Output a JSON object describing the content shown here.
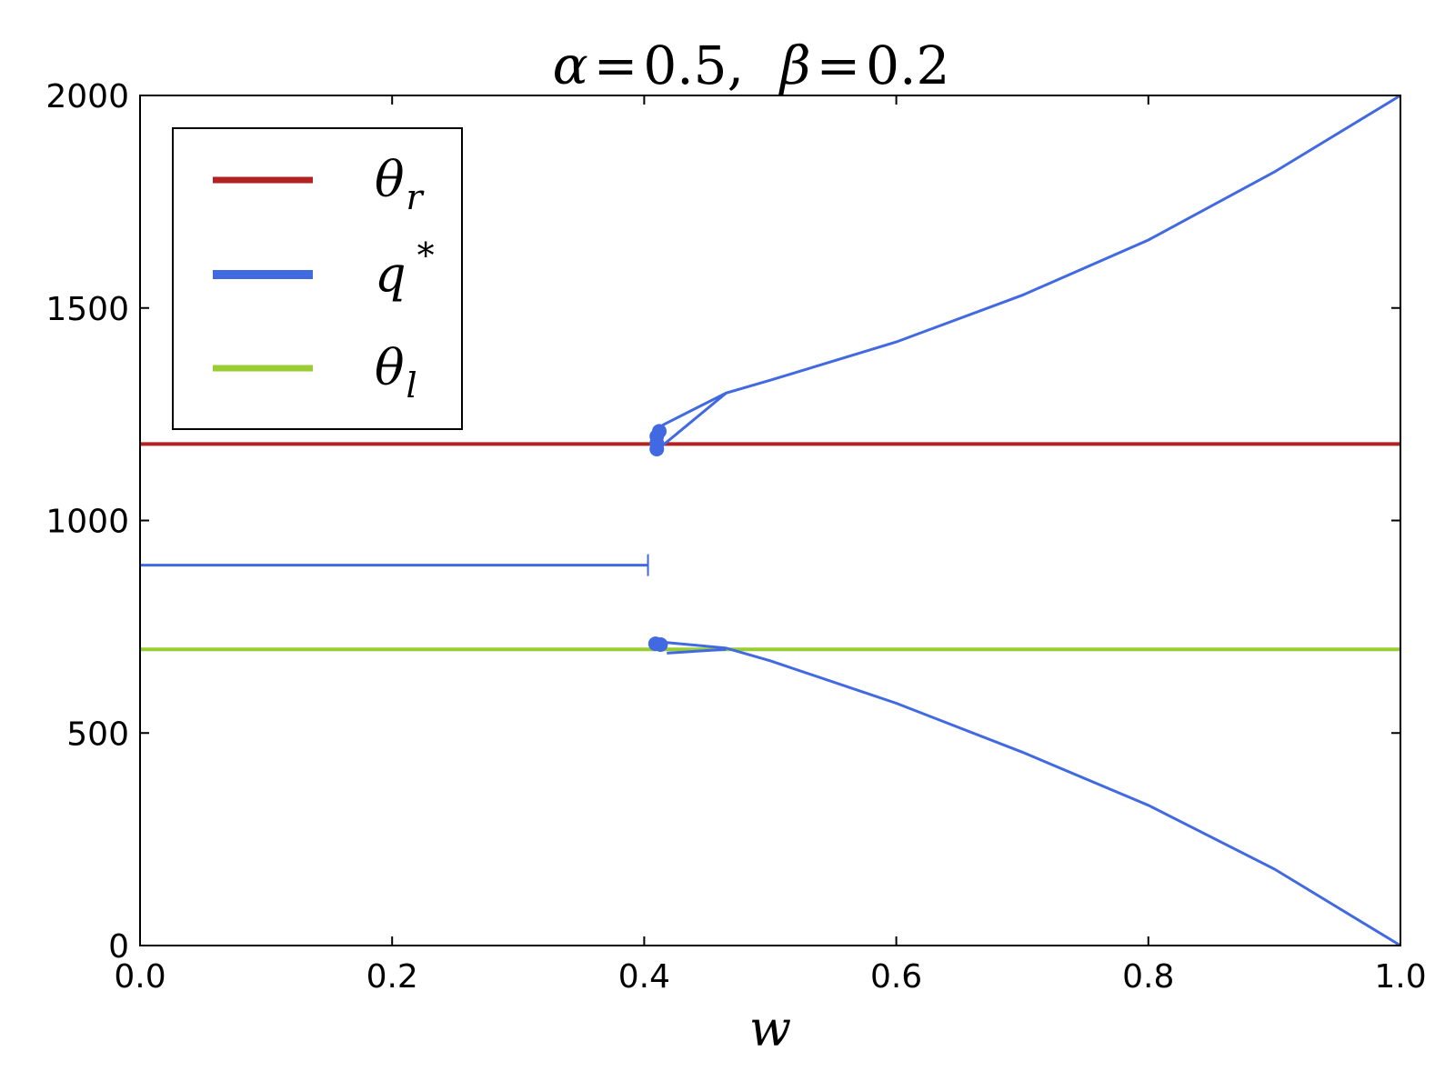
{
  "chart_data": {
    "type": "line",
    "title": {
      "alpha_symbol": "α",
      "alpha_value": "0.5,",
      "beta_symbol": "β",
      "beta_value": "0.2",
      "equals": "="
    },
    "xlabel": "w",
    "ylabel": "",
    "xlim": [
      0.0,
      1.0
    ],
    "ylim": [
      0,
      2000
    ],
    "x_ticks": [
      "0.0",
      "0.2",
      "0.4",
      "0.6",
      "0.8",
      "1.0"
    ],
    "y_ticks": [
      "0",
      "500",
      "1000",
      "1500",
      "2000"
    ],
    "grid": false,
    "legend_placement": "top-left",
    "legend": [
      {
        "symbol": "θ",
        "sub": "r",
        "sup": "",
        "color": "#b22222"
      },
      {
        "symbol": "q",
        "sub": "",
        "sup": "*",
        "color": "#4169e1"
      },
      {
        "symbol": "θ",
        "sub": "l",
        "sup": "",
        "color": "#9acd32"
      }
    ],
    "series": [
      {
        "id": "theta_r",
        "color": "#b22222",
        "points": [
          [
            0.0,
            1180
          ],
          [
            1.0,
            1180
          ]
        ]
      },
      {
        "id": "theta_l",
        "color": "#9acd32",
        "points": [
          [
            0.0,
            697
          ],
          [
            1.0,
            697
          ]
        ]
      },
      {
        "id": "q_star_mid",
        "color": "#4169e1",
        "points": [
          [
            0.0,
            895
          ],
          [
            0.403,
            895
          ]
        ]
      },
      {
        "id": "q_star_upper",
        "color": "#4169e1",
        "points": [
          [
            0.41,
            1175
          ],
          [
            0.411,
            1195
          ],
          [
            0.415,
            1225
          ],
          [
            0.465,
            1300
          ],
          [
            0.5,
            1330
          ],
          [
            0.6,
            1420
          ],
          [
            0.7,
            1530
          ],
          [
            0.8,
            1660
          ],
          [
            0.9,
            1820
          ],
          [
            1.0,
            2000
          ]
        ]
      },
      {
        "id": "q_star_upper_inner",
        "color": "#4169e1",
        "points": [
          [
            0.412,
            1170
          ],
          [
            0.465,
            1300
          ]
        ]
      },
      {
        "id": "q_star_lower",
        "color": "#4169e1",
        "points": [
          [
            0.41,
            715
          ],
          [
            0.465,
            700
          ],
          [
            0.5,
            670
          ],
          [
            0.6,
            570
          ],
          [
            0.7,
            455
          ],
          [
            0.8,
            330
          ],
          [
            0.9,
            180
          ],
          [
            1.0,
            0
          ]
        ]
      },
      {
        "id": "q_star_lower_inner",
        "color": "#4169e1",
        "points": [
          [
            0.418,
            688
          ],
          [
            0.465,
            697
          ]
        ]
      }
    ],
    "q_star_cluster_points": [
      [
        0.41,
        1168
      ],
      [
        0.41,
        1182
      ],
      [
        0.41,
        1198
      ],
      [
        0.412,
        1210
      ],
      [
        0.409,
        710
      ],
      [
        0.413,
        708
      ]
    ],
    "q_star_tick_marks": [
      [
        0.403,
        880
      ],
      [
        0.403,
        895
      ],
      [
        0.403,
        910
      ]
    ]
  }
}
